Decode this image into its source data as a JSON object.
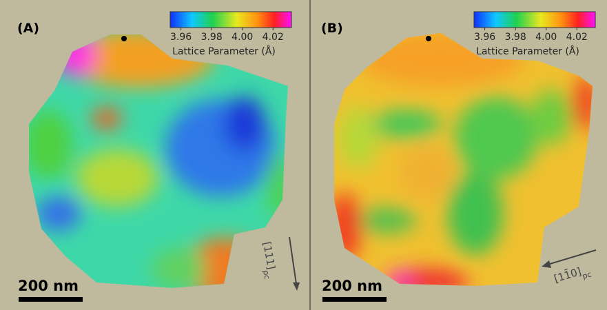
{
  "panels": [
    {
      "label": "(A)",
      "colorbar": {
        "range": [
          3.953,
          4.032
        ],
        "ticks": [
          3.96,
          3.98,
          {
            "value": 4,
            "label": "4.00"
          },
          4.02
        ],
        "label": "Lattice Parameter (Å)"
      },
      "scale_bar": "200 nm",
      "direction": {
        "text": "[111]",
        "subscript": "pc"
      }
    },
    {
      "label": "(B)",
      "colorbar": {
        "range": [
          3.953,
          4.032
        ],
        "ticks": [
          3.96,
          3.98,
          {
            "value": 4,
            "label": "4.00"
          },
          4.02
        ],
        "label": "Lattice Parameter (Å)"
      },
      "scale_bar": "200 nm",
      "direction": {
        "text": "[11̄0]",
        "subscript": "pc"
      }
    }
  ]
}
